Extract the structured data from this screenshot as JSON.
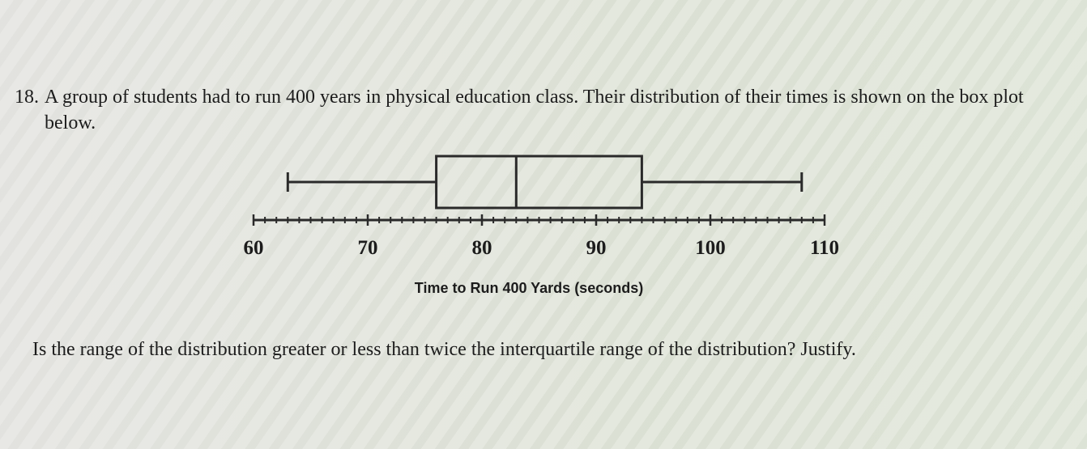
{
  "question": {
    "number": "18.",
    "text": "A group of students had to run 400 years in physical education class. Their distribution of their times is shown on the box plot below.",
    "follow_up": "Is the range of the distribution greater or less than twice the interquartile range of the distribution? Justify."
  },
  "chart_data": {
    "type": "box",
    "xlabel": "Time to Run 400 Yards (seconds)",
    "xlim": [
      60,
      110
    ],
    "tick_step": 1,
    "labeled_ticks": [
      60,
      70,
      80,
      90,
      100,
      110
    ],
    "min": 63,
    "q1": 76,
    "median": 83,
    "q3": 94,
    "max": 108
  }
}
